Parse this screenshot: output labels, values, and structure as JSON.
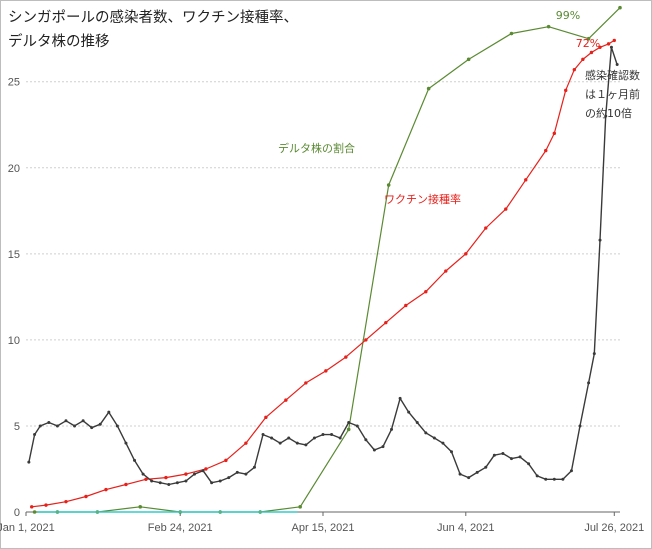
{
  "title": "シンガポールの感染者数、ワクチン接種率、\nデルタ株の推移",
  "chart_data": {
    "type": "line",
    "x_ticks": [
      "Jan 1, 2021",
      "Feb 24, 2021",
      "Apr 15, 2021",
      "Jun 4, 2021",
      "Jul 26, 2021"
    ],
    "x_tick_days": [
      0,
      54,
      104,
      154,
      206
    ],
    "xlim_days": [
      0,
      208
    ],
    "y_ticks": [
      0,
      5,
      10,
      15,
      20,
      25
    ],
    "ylim": [
      0,
      29.4
    ],
    "grid": "horizontal dotted",
    "series": [
      {
        "name": "デルタ株の割合",
        "color": "#5a8a32",
        "label": "デルタ株の割合",
        "end_label": "99%",
        "x": [
          3,
          11,
          25,
          40,
          54,
          68,
          82,
          96,
          113,
          127,
          141,
          155,
          170,
          183,
          197,
          208
        ],
        "y": [
          0,
          0,
          0,
          0.3,
          0,
          0,
          0,
          0.3,
          4.8,
          19,
          24.6,
          26.3,
          27.8,
          28.2,
          27.5,
          29.3
        ]
      },
      {
        "name": "ワクチン接種率",
        "color": "#e8201a",
        "label": "ワクチン接種率",
        "end_label": "72%",
        "x": [
          2,
          7,
          14,
          21,
          28,
          35,
          42,
          49,
          56,
          63,
          70,
          77,
          84,
          91,
          98,
          105,
          112,
          119,
          126,
          133,
          140,
          147,
          154,
          161,
          168,
          175,
          182,
          185,
          189,
          192,
          195,
          198,
          201,
          204,
          206
        ],
        "y": [
          0.3,
          0.4,
          0.6,
          0.9,
          1.3,
          1.6,
          1.9,
          2.0,
          2.2,
          2.5,
          3.0,
          4.0,
          5.5,
          6.5,
          7.5,
          8.2,
          9.0,
          10.0,
          11.0,
          12.0,
          12.8,
          14.0,
          15.0,
          16.5,
          17.6,
          19.3,
          21.0,
          22.0,
          24.5,
          25.7,
          26.3,
          26.7,
          27.0,
          27.2,
          27.4
        ]
      },
      {
        "name": "感染確認数",
        "color": "#3a3a3a",
        "label": "感染確認数\nは１ヶ月前\nの約10倍",
        "x": [
          1,
          3,
          5,
          8,
          11,
          14,
          17,
          20,
          23,
          26,
          29,
          32,
          35,
          38,
          41,
          44,
          47,
          50,
          53,
          56,
          59,
          62,
          65,
          68,
          71,
          74,
          77,
          80,
          83,
          86,
          89,
          92,
          95,
          98,
          101,
          104,
          107,
          110,
          113,
          116,
          119,
          122,
          125,
          128,
          131,
          134,
          137,
          140,
          143,
          146,
          149,
          152,
          155,
          158,
          161,
          164,
          167,
          170,
          173,
          176,
          179,
          182,
          185,
          188,
          191,
          194,
          197,
          199,
          201,
          203,
          205,
          207
        ],
        "y": [
          2.9,
          4.5,
          5.0,
          5.2,
          5.0,
          5.3,
          5.0,
          5.3,
          4.9,
          5.1,
          5.8,
          5.0,
          4.0,
          3.0,
          2.2,
          1.8,
          1.7,
          1.6,
          1.7,
          1.8,
          2.2,
          2.4,
          1.7,
          1.8,
          2.0,
          2.3,
          2.2,
          2.6,
          4.5,
          4.3,
          4.0,
          4.3,
          4.0,
          3.9,
          4.3,
          4.5,
          4.5,
          4.3,
          5.2,
          5.0,
          4.2,
          3.6,
          3.8,
          4.8,
          6.6,
          5.8,
          5.2,
          4.6,
          4.3,
          4.0,
          3.5,
          2.2,
          2.0,
          2.3,
          2.6,
          3.3,
          3.4,
          3.1,
          3.2,
          2.8,
          2.1,
          1.9,
          1.9,
          1.9,
          2.4,
          5.0,
          7.5,
          9.2,
          15.8,
          23.0,
          27.0,
          26.0
        ]
      },
      {
        "name": "baseline",
        "color": "#33cccc",
        "x": [
          4,
          95
        ],
        "y": [
          0,
          0
        ]
      }
    ]
  }
}
